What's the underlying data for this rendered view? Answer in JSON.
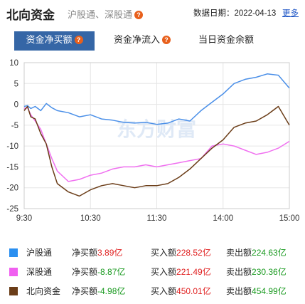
{
  "header": {
    "title": "北向资金",
    "subtitle": "沪股通、深股通",
    "date_label": "数据日期：2022-04-13",
    "more_link": "更多",
    "help_glyph": "?"
  },
  "tabs": [
    {
      "label": "资金净买额",
      "active": true,
      "has_help": true
    },
    {
      "label": "资金净流入",
      "active": false,
      "has_help": true
    },
    {
      "label": "当日资金余额",
      "active": false,
      "has_help": false
    }
  ],
  "watermark": "东方财富",
  "chart_data": {
    "type": "line",
    "x_ticks": [
      "9:30",
      "10:30",
      "11:30",
      "14:00",
      "15:00"
    ],
    "y_ticks": [
      10,
      5,
      0,
      -5,
      -10,
      -15,
      -20,
      -25
    ],
    "ylim": [
      -25,
      10
    ],
    "grid": true,
    "legend": "bottom",
    "series": [
      {
        "name": "沪股通",
        "color": "#4a8fe8",
        "x": [
          0,
          3,
          6,
          10,
          15,
          20,
          25,
          30,
          40,
          50,
          60,
          70,
          80,
          90,
          100,
          110,
          120,
          130,
          140,
          150,
          160,
          170,
          180,
          190,
          200,
          210,
          220,
          230,
          240
        ],
        "values": [
          -0.5,
          -0.3,
          -1.0,
          -0.5,
          -1.5,
          0.2,
          -0.8,
          -1.5,
          -2.0,
          -3.0,
          -2.5,
          -3.5,
          -3.8,
          -4.3,
          -4.5,
          -4.3,
          -4.8,
          -4.5,
          -3.5,
          -4.0,
          -1.5,
          0.5,
          2.5,
          5.0,
          6.0,
          6.5,
          7.3,
          7.0,
          3.9
        ]
      },
      {
        "name": "深股通",
        "color": "#f070f0",
        "x": [
          0,
          3,
          6,
          10,
          15,
          20,
          25,
          30,
          40,
          50,
          60,
          70,
          80,
          90,
          100,
          110,
          120,
          130,
          140,
          150,
          160,
          170,
          180,
          190,
          200,
          210,
          220,
          230,
          240
        ],
        "values": [
          -1.0,
          -0.8,
          -2.5,
          -4.0,
          -6.0,
          -9.5,
          -13.0,
          -16.0,
          -18.5,
          -18.0,
          -17.0,
          -16.5,
          -15.5,
          -15.0,
          -15.0,
          -14.5,
          -15.0,
          -14.5,
          -14.0,
          -13.5,
          -13.0,
          -10.0,
          -9.5,
          -10.0,
          -11.0,
          -12.0,
          -11.5,
          -10.5,
          -8.87
        ]
      },
      {
        "name": "北向资金",
        "color": "#6b3d18",
        "x": [
          0,
          3,
          6,
          10,
          15,
          20,
          25,
          30,
          40,
          50,
          60,
          70,
          80,
          90,
          100,
          110,
          120,
          130,
          140,
          150,
          160,
          170,
          180,
          190,
          200,
          210,
          220,
          230,
          240
        ],
        "values": [
          -1.5,
          -0.5,
          -3.0,
          -3.5,
          -7.0,
          -9.5,
          -15.0,
          -19.0,
          -21.0,
          -22.0,
          -20.5,
          -19.5,
          -19.0,
          -19.5,
          -20.0,
          -19.5,
          -19.5,
          -19.0,
          -17.5,
          -15.5,
          -13.0,
          -10.5,
          -8.5,
          -5.5,
          -4.5,
          -4.0,
          -2.5,
          -0.5,
          -4.98
        ]
      }
    ]
  },
  "legend": [
    {
      "name": "沪股通",
      "color": "#2a8ff0",
      "net_label": "净买额",
      "net_value": "3.89亿",
      "net_tone": "red",
      "buy_label": "买入额",
      "buy_value": "228.52亿",
      "sell_label": "卖出额",
      "sell_value": "224.63亿"
    },
    {
      "name": "深股通",
      "color": "#f060f0",
      "net_label": "净买额",
      "net_value": "-8.87亿",
      "net_tone": "green",
      "buy_label": "买入额",
      "buy_value": "221.49亿",
      "sell_label": "卖出额",
      "sell_value": "230.36亿"
    },
    {
      "name": "北向资金",
      "color": "#6b3d18",
      "net_label": "净买额",
      "net_value": "-4.98亿",
      "net_tone": "green",
      "buy_label": "买入额",
      "buy_value": "450.01亿",
      "sell_label": "卖出额",
      "sell_value": "454.99亿"
    }
  ]
}
